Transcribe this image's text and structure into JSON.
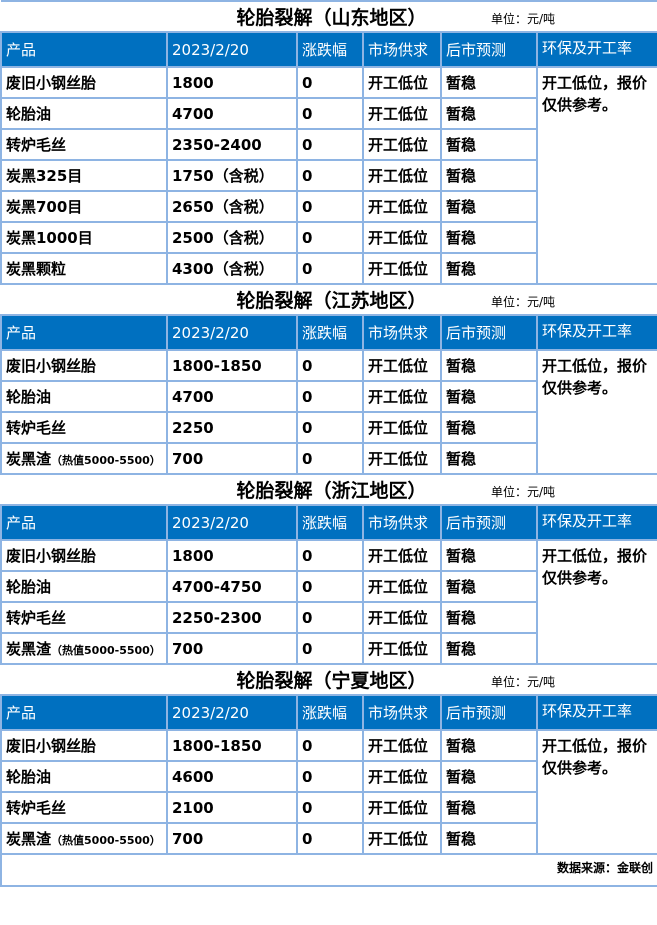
{
  "columns": [
    "产品",
    "2023/2/20",
    "涨跌幅",
    "市场供求",
    "后市预测",
    "环保及开工率"
  ],
  "unit": "单位：元/吨",
  "sections": [
    {
      "title": "轮胎裂解（山东地区）",
      "note": "开工低位，报价仅供参考。",
      "rows": [
        {
          "product": "废旧小钢丝胎",
          "price": "1800",
          "change": "0",
          "supply": "开工低位",
          "forecast": "暂稳"
        },
        {
          "product": "轮胎油",
          "price": "4700",
          "change": "0",
          "supply": "开工低位",
          "forecast": "暂稳"
        },
        {
          "product": "转炉毛丝",
          "price": "2350-2400",
          "change": "0",
          "supply": "开工低位",
          "forecast": "暂稳"
        },
        {
          "product": "炭黑325目",
          "price": "1750（含税）",
          "change": "0",
          "supply": "开工低位",
          "forecast": "暂稳"
        },
        {
          "product": "炭黑700目",
          "price": "2650（含税）",
          "change": "0",
          "supply": "开工低位",
          "forecast": "暂稳"
        },
        {
          "product": "炭黑1000目",
          "price": "2500（含税）",
          "change": "0",
          "supply": "开工低位",
          "forecast": "暂稳"
        },
        {
          "product": "炭黑颗粒",
          "price": "4300（含税）",
          "change": "0",
          "supply": "开工低位",
          "forecast": "暂稳"
        }
      ]
    },
    {
      "title": "轮胎裂解（江苏地区）",
      "note": "开工低位，报价仅供参考。",
      "rows": [
        {
          "product": "废旧小钢丝胎",
          "price": "1800-1850",
          "change": "0",
          "supply": "开工低位",
          "forecast": "暂稳"
        },
        {
          "product": "轮胎油",
          "price": "4700",
          "change": "0",
          "supply": "开工低位",
          "forecast": "暂稳"
        },
        {
          "product": "转炉毛丝",
          "price": "2250",
          "change": "0",
          "supply": "开工低位",
          "forecast": "暂稳"
        },
        {
          "product": "炭黑渣",
          "sub": "（热值5000-5500）",
          "price": "700",
          "change": "0",
          "supply": "开工低位",
          "forecast": "暂稳"
        }
      ]
    },
    {
      "title": "轮胎裂解（浙江地区）",
      "note": "开工低位，报价仅供参考。",
      "rows": [
        {
          "product": "废旧小钢丝胎",
          "price": "1800",
          "change": "0",
          "supply": "开工低位",
          "forecast": "暂稳"
        },
        {
          "product": "轮胎油",
          "price": "4700-4750",
          "change": "0",
          "supply": "开工低位",
          "forecast": "暂稳"
        },
        {
          "product": "转炉毛丝",
          "price": "2250-2300",
          "change": "0",
          "supply": "开工低位",
          "forecast": "暂稳"
        },
        {
          "product": "炭黑渣",
          "sub": "（热值5000-5500）",
          "price": "700",
          "change": "0",
          "supply": "开工低位",
          "forecast": "暂稳"
        }
      ]
    },
    {
      "title": "轮胎裂解（宁夏地区）",
      "note": "开工低位，报价仅供参考。",
      "rows": [
        {
          "product": "废旧小钢丝胎",
          "price": "1800-1850",
          "change": "0",
          "supply": "开工低位",
          "forecast": "暂稳"
        },
        {
          "product": "轮胎油",
          "price": "4600",
          "change": "0",
          "supply": "开工低位",
          "forecast": "暂稳"
        },
        {
          "product": "转炉毛丝",
          "price": "2100",
          "change": "0",
          "supply": "开工低位",
          "forecast": "暂稳"
        },
        {
          "product": "炭黑渣",
          "sub": "（热值5000-5500）",
          "price": "700",
          "change": "0",
          "supply": "开工低位",
          "forecast": "暂稳"
        }
      ]
    }
  ],
  "footer": "数据来源：金联创",
  "colors": {
    "header_bg": "#0070c0",
    "border": "#8eb4e3"
  }
}
